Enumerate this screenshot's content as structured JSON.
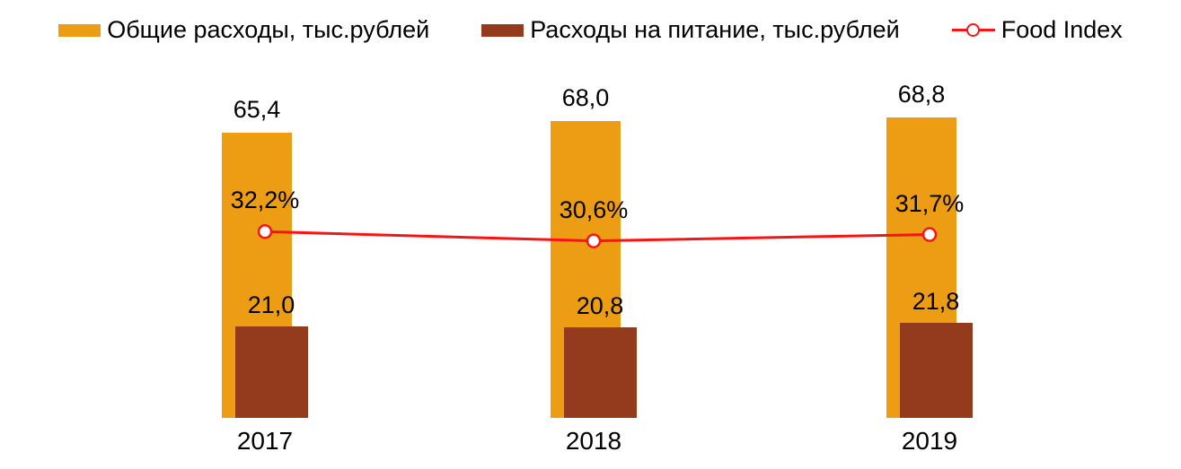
{
  "chart_data": {
    "type": "bar",
    "subtype": "overlapped-bars-with-line",
    "title": "",
    "xlabel": "",
    "ylabel": "",
    "categories": [
      "2017",
      "2018",
      "2019"
    ],
    "series": [
      {
        "name": "Общие расходы, тыс.рублей",
        "type": "bar",
        "color": "#ec9d13",
        "values": [
          65.4,
          68.0,
          68.8
        ],
        "labels": [
          "65,4",
          "68,0",
          "68,8"
        ]
      },
      {
        "name": "Расходы на питание, тыс.рублей",
        "type": "bar",
        "color": "#943a1d",
        "values": [
          21.0,
          20.8,
          21.8
        ],
        "labels": [
          "21,0",
          "20,8",
          "21,8"
        ]
      },
      {
        "name": "Food Index",
        "type": "line",
        "color": "#f81414",
        "marker": "open-circle",
        "values_percent": [
          32.2,
          30.6,
          31.7
        ],
        "labels": [
          "32,2%",
          "30,6%",
          "31,7%"
        ]
      }
    ],
    "ylim": [
      0,
      72
    ],
    "gridlines": false,
    "axes_visible": false,
    "legend_position": "top",
    "label_color": "#000000",
    "background_color": "#ffffff"
  }
}
